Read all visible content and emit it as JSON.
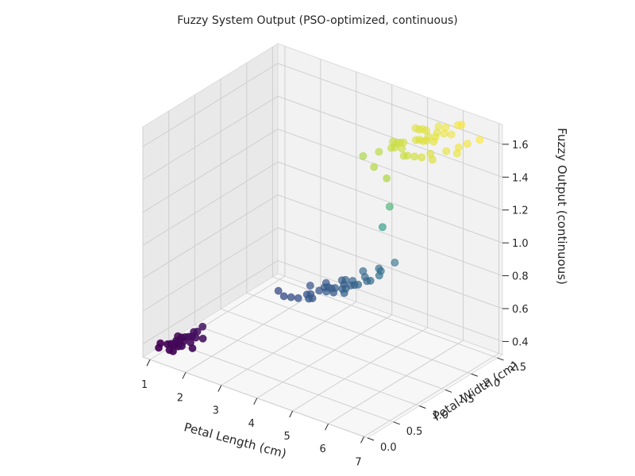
{
  "chart_data": {
    "type": "scatter3d",
    "title": "Fuzzy System Output (PSO-optimized, continuous)",
    "xlabel": "Petal Length (cm)",
    "ylabel": "Petal Width (cm)",
    "zlabel": "Fuzzy Output (continuous)",
    "xlim": [
      0.8,
      7.1
    ],
    "ylim": [
      0.0,
      2.6
    ],
    "zlim": [
      0.32,
      1.72
    ],
    "xticks": [
      "1",
      "2",
      "3",
      "4",
      "5",
      "6",
      "7"
    ],
    "yticks": [
      "0.0",
      "0.5",
      "1.0",
      "1.5",
      "2.0",
      "2.5"
    ],
    "zticks": [
      "0.4",
      "0.6",
      "0.8",
      "1.0",
      "1.2",
      "1.4",
      "1.6"
    ],
    "grid": true,
    "colormap": "viridis",
    "colors": {
      "low": "#440154",
      "mid": "#21908d",
      "high": "#fde725"
    },
    "series": [
      {
        "points": [
          [
            1.4,
            0.2,
            0.4
          ],
          [
            1.3,
            0.2,
            0.4
          ],
          [
            1.5,
            0.2,
            0.4
          ],
          [
            1.4,
            0.3,
            0.41
          ],
          [
            1.7,
            0.4,
            0.43
          ],
          [
            1.5,
            0.1,
            0.39
          ],
          [
            1.6,
            0.2,
            0.41
          ],
          [
            1.1,
            0.1,
            0.38
          ],
          [
            1.2,
            0.2,
            0.39
          ],
          [
            1.0,
            0.2,
            0.38
          ],
          [
            1.9,
            0.4,
            0.44
          ],
          [
            1.6,
            0.6,
            0.45
          ],
          [
            1.3,
            0.3,
            0.4
          ],
          [
            1.5,
            0.4,
            0.42
          ],
          [
            1.4,
            0.1,
            0.39
          ],
          [
            1.7,
            0.3,
            0.42
          ],
          [
            1.5,
            0.3,
            0.41
          ],
          [
            1.6,
            0.4,
            0.43
          ],
          [
            1.9,
            0.2,
            0.42
          ],
          [
            1.2,
            0.4,
            0.4
          ],
          [
            1.4,
            0.4,
            0.41
          ],
          [
            1.3,
            0.4,
            0.4
          ],
          [
            1.5,
            0.5,
            0.43
          ],
          [
            1.6,
            0.5,
            0.44
          ],
          [
            1.4,
            0.2,
            0.41
          ]
        ]
      },
      {
        "points": [
          [
            3.0,
            1.1,
            0.68
          ],
          [
            3.3,
            1.0,
            0.69
          ],
          [
            3.5,
            1.0,
            0.7
          ],
          [
            3.6,
            1.3,
            0.72
          ],
          [
            3.8,
            1.1,
            0.72
          ],
          [
            3.9,
            1.1,
            0.73
          ],
          [
            3.9,
            1.4,
            0.74
          ],
          [
            4.0,
            1.0,
            0.73
          ],
          [
            4.0,
            1.2,
            0.74
          ],
          [
            4.0,
            1.3,
            0.74
          ],
          [
            4.1,
            1.0,
            0.74
          ],
          [
            4.1,
            1.3,
            0.75
          ],
          [
            4.2,
            1.2,
            0.75
          ],
          [
            4.2,
            1.3,
            0.75
          ],
          [
            4.2,
            1.5,
            0.76
          ],
          [
            4.3,
            1.3,
            0.76
          ],
          [
            4.4,
            1.2,
            0.76
          ],
          [
            4.4,
            1.4,
            0.77
          ],
          [
            4.5,
            1.3,
            0.77
          ],
          [
            4.5,
            1.5,
            0.78
          ],
          [
            4.5,
            1.7,
            0.8
          ],
          [
            4.6,
            1.3,
            0.78
          ],
          [
            4.6,
            1.4,
            0.78
          ],
          [
            4.7,
            1.2,
            0.78
          ],
          [
            4.7,
            1.4,
            0.79
          ],
          [
            4.7,
            1.6,
            0.8
          ],
          [
            4.8,
            1.4,
            0.8
          ],
          [
            4.8,
            1.8,
            0.82
          ],
          [
            4.9,
            1.5,
            0.81
          ],
          [
            5.0,
            1.5,
            0.82
          ],
          [
            5.0,
            1.7,
            0.84
          ],
          [
            5.1,
            1.6,
            0.84
          ],
          [
            5.1,
            1.9,
            0.86
          ],
          [
            3.7,
            1.0,
            0.71
          ],
          [
            4.3,
            1.5,
            0.77
          ],
          [
            4.9,
            1.8,
            1.08
          ],
          [
            5.1,
            1.8,
            1.22
          ]
        ]
      },
      {
        "points": [
          [
            4.8,
            1.8,
            1.53
          ],
          [
            4.9,
            2.0,
            1.56
          ],
          [
            5.0,
            1.9,
            1.55
          ],
          [
            5.0,
            2.0,
            1.56
          ],
          [
            5.1,
            1.9,
            1.56
          ],
          [
            5.1,
            2.0,
            1.57
          ],
          [
            5.1,
            2.3,
            1.6
          ],
          [
            5.2,
            2.0,
            1.58
          ],
          [
            5.3,
            1.9,
            1.57
          ],
          [
            5.3,
            2.3,
            1.61
          ],
          [
            5.4,
            2.1,
            1.59
          ],
          [
            5.5,
            1.8,
            1.56
          ],
          [
            5.5,
            2.1,
            1.6
          ],
          [
            5.6,
            1.8,
            1.57
          ],
          [
            5.6,
            2.1,
            1.6
          ],
          [
            5.6,
            2.4,
            1.63
          ],
          [
            5.7,
            2.1,
            1.61
          ],
          [
            5.7,
            2.3,
            1.62
          ],
          [
            5.8,
            1.8,
            1.58
          ],
          [
            5.8,
            2.2,
            1.62
          ],
          [
            5.9,
            2.1,
            1.62
          ],
          [
            5.9,
            2.3,
            1.63
          ],
          [
            6.0,
            1.8,
            1.59
          ],
          [
            6.0,
            2.5,
            1.65
          ],
          [
            6.1,
            1.9,
            1.6
          ],
          [
            6.1,
            2.3,
            1.64
          ],
          [
            6.1,
            2.5,
            1.66
          ],
          [
            6.3,
            1.8,
            1.6
          ],
          [
            6.4,
            2.0,
            1.62
          ],
          [
            6.6,
            2.1,
            1.64
          ],
          [
            6.7,
            2.2,
            1.65
          ],
          [
            6.9,
            2.3,
            1.67
          ],
          [
            5.2,
            2.3,
            1.6
          ],
          [
            5.4,
            2.3,
            1.61
          ],
          [
            4.5,
            1.7,
            1.5
          ],
          [
            5.8,
            2.4,
            1.64
          ],
          [
            6.7,
            2.0,
            1.63
          ],
          [
            5.6,
            2.2,
            1.61
          ],
          [
            5.1,
            1.5,
            1.52
          ],
          [
            5.6,
            1.4,
            1.51
          ]
        ]
      }
    ]
  }
}
